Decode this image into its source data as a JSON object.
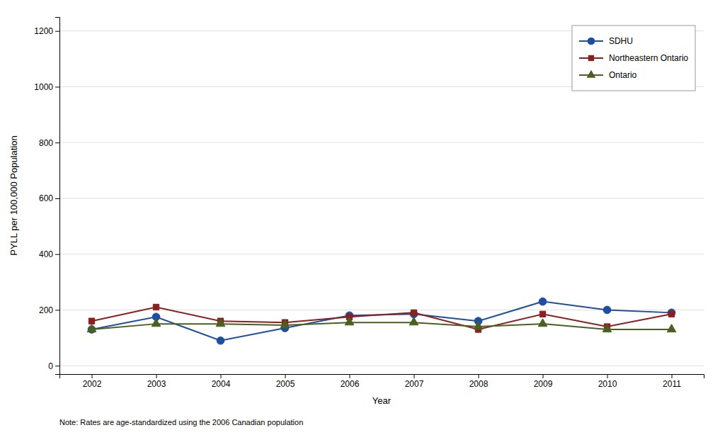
{
  "chart_data": {
    "type": "line",
    "xlabel": "Year",
    "ylabel": "PYLL per 100,000 Population",
    "x": [
      2002,
      2003,
      2004,
      2005,
      2006,
      2007,
      2008,
      2009,
      2010,
      2011
    ],
    "series": [
      {
        "name": "SDHU",
        "color": "#1f4e9f",
        "marker": "circle",
        "values": [
          130,
          175,
          90,
          135,
          180,
          185,
          160,
          230,
          200,
          190
        ]
      },
      {
        "name": "Northeastern Ontario",
        "color": "#8b2020",
        "marker": "square",
        "values": [
          160,
          210,
          160,
          155,
          175,
          190,
          130,
          185,
          140,
          185
        ]
      },
      {
        "name": "Ontario",
        "color": "#4a6020",
        "marker": "triangle",
        "values": [
          130,
          150,
          150,
          145,
          155,
          155,
          140,
          150,
          130,
          130
        ]
      }
    ],
    "xlim": [
      2001.5,
      2011.5
    ],
    "xticks": [
      2002,
      2003,
      2004,
      2005,
      2006,
      2007,
      2008,
      2009,
      2010,
      2011
    ],
    "ylim": [
      -30,
      1250
    ],
    "yticks": [
      0,
      200,
      400,
      600,
      800,
      1000,
      1200
    ],
    "grid": true,
    "legend": "upper right",
    "annotations": [
      "Note: Rates are age-standardized using the 2006 Canadian population"
    ]
  }
}
